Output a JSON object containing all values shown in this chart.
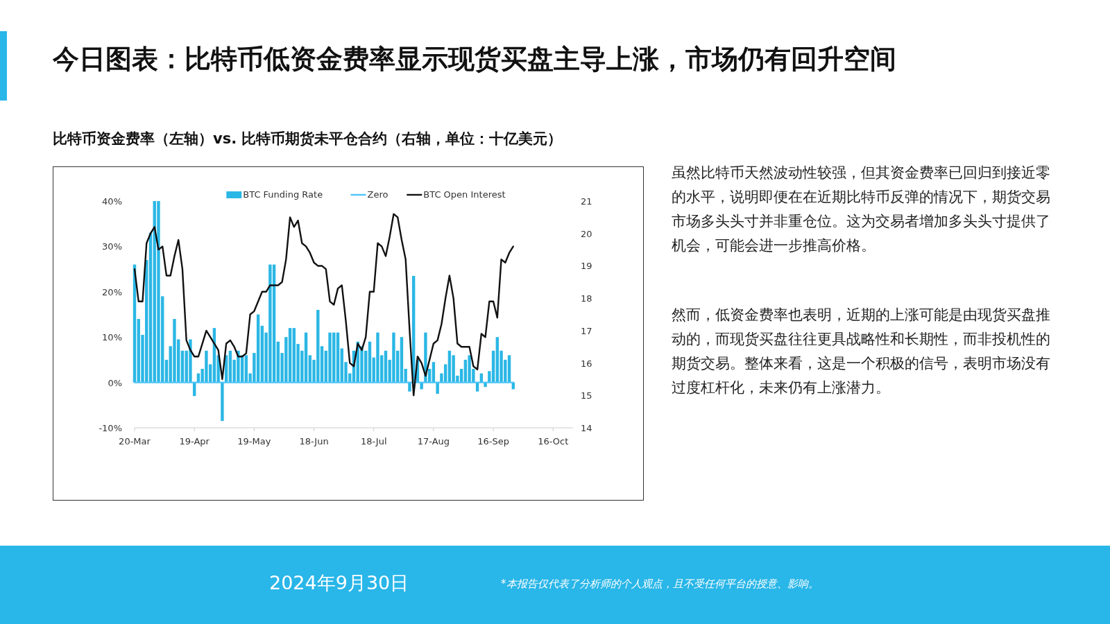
{
  "chart_data": {
    "type": "bar",
    "title": "今日图表：比特币低资金费率显示现货买盘主导上涨，市场仍有回升空间",
    "subtitle": "比特币资金费率（左轴）vs. 比特币期货未平仓合约（右轴，单位：十亿美元）",
    "x": [
      "2024-03-20",
      "2024-03-22",
      "2024-03-24",
      "2024-03-26",
      "2024-03-28",
      "2024-03-30",
      "2024-04-01",
      "2024-04-03",
      "2024-04-05",
      "2024-04-07",
      "2024-04-09",
      "2024-04-11",
      "2024-04-13",
      "2024-04-15",
      "2024-04-17",
      "2024-04-19",
      "2024-04-21",
      "2024-04-23",
      "2024-04-25",
      "2024-04-27",
      "2024-04-29",
      "2024-05-01",
      "2024-05-03",
      "2024-05-05",
      "2024-05-07",
      "2024-05-09",
      "2024-05-11",
      "2024-05-13",
      "2024-05-15",
      "2024-05-17",
      "2024-05-19",
      "2024-05-21",
      "2024-05-23",
      "2024-05-25",
      "2024-05-27",
      "2024-05-29",
      "2024-05-31",
      "2024-06-02",
      "2024-06-04",
      "2024-06-06",
      "2024-06-08",
      "2024-06-10",
      "2024-06-12",
      "2024-06-14",
      "2024-06-16",
      "2024-06-18",
      "2024-06-20",
      "2024-06-22",
      "2024-06-24",
      "2024-06-26",
      "2024-06-28",
      "2024-06-30",
      "2024-07-02",
      "2024-07-04",
      "2024-07-06",
      "2024-07-08",
      "2024-07-10",
      "2024-07-12",
      "2024-07-14",
      "2024-07-16",
      "2024-07-18",
      "2024-07-20",
      "2024-07-22",
      "2024-07-24",
      "2024-07-26",
      "2024-07-28",
      "2024-07-30",
      "2024-08-01",
      "2024-08-03",
      "2024-08-05",
      "2024-08-07",
      "2024-08-09",
      "2024-08-11",
      "2024-08-13",
      "2024-08-15",
      "2024-08-17",
      "2024-08-19",
      "2024-08-21",
      "2024-08-23",
      "2024-08-25",
      "2024-08-27",
      "2024-08-29",
      "2024-08-31",
      "2024-09-02",
      "2024-09-04",
      "2024-09-06",
      "2024-09-08",
      "2024-09-10",
      "2024-09-12",
      "2024-09-14",
      "2024-09-16",
      "2024-09-18",
      "2024-09-20",
      "2024-09-22",
      "2024-09-24",
      "2024-09-26"
    ],
    "xlim": [
      "2024-03-20",
      "2024-10-26"
    ],
    "xticks": [
      {
        "value": "2024-03-20",
        "label": "20-Mar"
      },
      {
        "value": "2024-04-19",
        "label": "19-Apr"
      },
      {
        "value": "2024-05-19",
        "label": "19-May"
      },
      {
        "value": "2024-06-18",
        "label": "18-Jun"
      },
      {
        "value": "2024-07-18",
        "label": "18-Jul"
      },
      {
        "value": "2024-08-17",
        "label": "17-Aug"
      },
      {
        "value": "2024-09-16",
        "label": "16-Sep"
      },
      {
        "value": "2024-10-16",
        "label": "16-Oct"
      }
    ],
    "ylim": [
      -10,
      40
    ],
    "yticks": [
      {
        "value": -10,
        "label": "-10%"
      },
      {
        "value": 0,
        "label": "0%"
      },
      {
        "value": 10,
        "label": "10%"
      },
      {
        "value": 20,
        "label": "20%"
      },
      {
        "value": 30,
        "label": "30%"
      },
      {
        "value": 40,
        "label": "40%"
      }
    ],
    "y2lim": [
      14,
      21
    ],
    "y2ticks": [
      14,
      15,
      16,
      17,
      18,
      19,
      20,
      21
    ],
    "legend": "top",
    "grid": false,
    "series": [
      {
        "name": "BTC Funding Rate",
        "color": "#2bb7e5",
        "values": [
          26,
          14,
          10.5,
          27,
          33,
          40,
          40,
          19,
          5,
          8,
          14,
          9.5,
          7,
          7,
          9.5,
          -3,
          2,
          3,
          7,
          4,
          12,
          6,
          -8.5,
          6,
          7,
          5,
          7,
          6,
          6,
          2,
          6.5,
          15,
          12.5,
          11,
          26,
          26,
          9,
          6.5,
          10,
          12,
          12,
          8.5,
          7,
          11,
          6,
          5,
          16,
          8,
          7,
          11,
          11,
          11,
          7.5,
          4.5,
          2,
          7,
          9,
          8,
          7,
          9,
          5.5,
          11,
          6,
          7,
          5,
          11,
          7,
          10,
          3,
          -2,
          23.5,
          5,
          -1.5,
          11,
          3,
          4.5,
          -2.5,
          2,
          4,
          7,
          6,
          1.5,
          3,
          5,
          6,
          3,
          -2,
          2,
          -1,
          2.5,
          7,
          10,
          7,
          5,
          6,
          -1.5
        ]
      },
      {
        "name": "Zero",
        "type": "line",
        "color": "#4fc3f7",
        "x": [
          "2024-03-20",
          "2024-09-26"
        ],
        "values": [
          0,
          0
        ]
      },
      {
        "name": "BTC Open Interest",
        "type": "line",
        "axis": "y2",
        "color": "#111111",
        "values": [
          18.9,
          17.9,
          17.9,
          19.7,
          20.0,
          20.2,
          19.5,
          19.6,
          18.7,
          18.7,
          19.3,
          19.8,
          18.9,
          16.7,
          16.4,
          16.2,
          16.2,
          16.6,
          17.0,
          16.8,
          16.6,
          16.4,
          15.5,
          16.6,
          16.7,
          16.5,
          16.2,
          16.2,
          16.3,
          17.5,
          17.6,
          17.9,
          18.2,
          18.2,
          18.4,
          18.4,
          18.4,
          18.5,
          19.2,
          20.5,
          20.2,
          20.4,
          19.7,
          19.6,
          19.4,
          19.1,
          19.0,
          19.0,
          18.9,
          17.9,
          17.8,
          18.3,
          18.4,
          17.3,
          16.0,
          15.9,
          16.6,
          16.4,
          16.8,
          18.2,
          18.2,
          19.7,
          19.6,
          19.3,
          19.9,
          20.6,
          20.5,
          19.8,
          19.2,
          17.0,
          15.0,
          16.2,
          16.0,
          15.6,
          16.1,
          16.6,
          16.7,
          17.2,
          18.0,
          18.7,
          18.0,
          16.6,
          16.5,
          16.5,
          16.5,
          15.9,
          15.8,
          16.9,
          16.8,
          17.9,
          17.9,
          17.4,
          19.2,
          19.1,
          19.4,
          19.6
        ]
      }
    ],
    "annotations": [
      "虽然比特币天然波动性较强，但其资金费率已回归到接近零的水平，说明即便在在近期比特币反弹的情况下，期货交易市场多头头寸并非重仓位。这为交易者增加多头头寸提供了机会，可能会进一步推高价格。",
      "然而，低资金费率也表明，近期的上涨可能是由现货买盘推动的，而现货买盘往往更具战略性和长期性，而非投机性的期货交易。整体来看，这是一个积极的信号，表明市场没有过度杠杆化，未来仍有上涨潜力。",
      "2024年9月30日",
      "*本报告仅代表了分析师的个人观点，且不受任何平台的授意、影响。"
    ]
  }
}
